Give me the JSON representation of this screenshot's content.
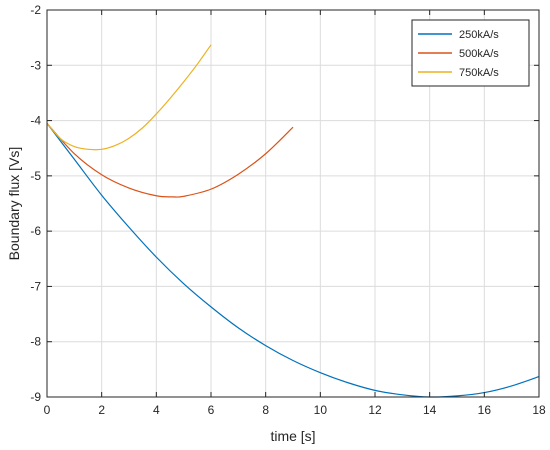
{
  "chart_data": {
    "type": "line",
    "title": "",
    "xlabel": "time [s]",
    "ylabel": "Boundary flux [Vs]",
    "xlim": [
      0,
      18
    ],
    "ylim": [
      -9,
      -2
    ],
    "xticks": [
      0,
      2,
      4,
      6,
      8,
      10,
      12,
      14,
      16,
      18
    ],
    "yticks": [
      -9,
      -8,
      -7,
      -6,
      -5,
      -4,
      -3,
      -2
    ],
    "grid": true,
    "legend_position": "top-right",
    "series": [
      {
        "name": "250kA/s",
        "color": "#0072BD",
        "x": [
          0,
          1,
          2,
          3,
          4,
          5,
          6,
          7,
          8,
          9,
          10,
          11,
          12,
          13,
          14,
          15,
          16,
          17,
          18
        ],
        "y": [
          -4.05,
          -4.7,
          -5.35,
          -5.93,
          -6.47,
          -6.95,
          -7.37,
          -7.75,
          -8.07,
          -8.34,
          -8.56,
          -8.74,
          -8.88,
          -8.96,
          -9.0,
          -8.98,
          -8.92,
          -8.8,
          -8.63
        ]
      },
      {
        "name": "500kA/s",
        "color": "#D95319",
        "x": [
          0,
          1,
          2,
          3,
          4,
          4.6,
          5,
          6,
          7,
          8,
          9
        ],
        "y": [
          -4.05,
          -4.6,
          -4.98,
          -5.22,
          -5.36,
          -5.38,
          -5.37,
          -5.24,
          -4.97,
          -4.6,
          -4.12
        ]
      },
      {
        "name": "750kA/s",
        "color": "#EDB120",
        "x": [
          0,
          0.5,
          1,
          1.5,
          2,
          2.5,
          3,
          3.5,
          4,
          4.5,
          5,
          5.5,
          6
        ],
        "y": [
          -4.05,
          -4.33,
          -4.47,
          -4.52,
          -4.52,
          -4.45,
          -4.32,
          -4.13,
          -3.88,
          -3.6,
          -3.3,
          -2.98,
          -2.63
        ]
      }
    ]
  }
}
